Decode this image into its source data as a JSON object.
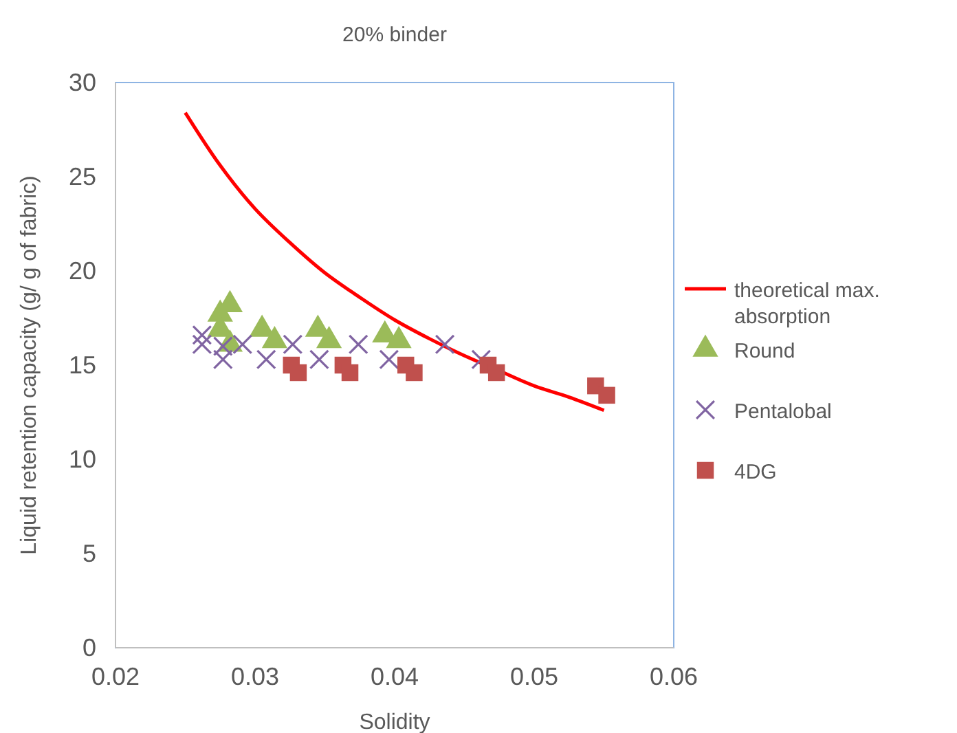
{
  "chart_data": {
    "type": "scatter",
    "title": "20% binder",
    "xlabel": "Solidity",
    "ylabel": "Liquid retention capacity (g/ g of fabric)",
    "xlim": [
      0.02,
      0.06
    ],
    "xticks": [
      {
        "value": 0.02,
        "label": "0.02"
      },
      {
        "value": 0.03,
        "label": "0.03"
      },
      {
        "value": 0.04,
        "label": "0.04"
      },
      {
        "value": 0.05,
        "label": "0.05"
      },
      {
        "value": 0.06,
        "label": "0.06"
      }
    ],
    "ylim": [
      0,
      30
    ],
    "yticks": [
      0,
      5,
      10,
      15,
      20,
      25,
      30
    ],
    "grid": false,
    "legend": "right",
    "series": [
      {
        "name": "theoretical max. absorption",
        "type": "line",
        "color": "#ff0000",
        "marker": "none",
        "line_style": "solid",
        "x": [
          0.025,
          0.0275,
          0.03,
          0.0325,
          0.035,
          0.0375,
          0.04,
          0.0425,
          0.045,
          0.0475,
          0.05,
          0.0525,
          0.055
        ],
        "values": [
          28.4,
          25.6,
          23.3,
          21.5,
          19.9,
          18.6,
          17.4,
          16.4,
          15.5,
          14.7,
          13.9,
          13.3,
          12.6
        ]
      },
      {
        "name": "Round",
        "color": "#9bbb59",
        "marker": "triangle",
        "x": [
          0.0275,
          0.0282,
          0.0275,
          0.0282,
          0.0305,
          0.0314,
          0.0345,
          0.0353,
          0.0393,
          0.0403
        ],
        "values": [
          17.7,
          18.2,
          16.9,
          16.1,
          16.9,
          16.3,
          16.9,
          16.3,
          16.6,
          16.3
        ]
      },
      {
        "name": "Pentalobal",
        "color": "#8064a2",
        "marker": "cross",
        "x": [
          0.0262,
          0.0262,
          0.0277,
          0.0277,
          0.0291,
          0.0308,
          0.0327,
          0.0346,
          0.0374,
          0.0396,
          0.0436,
          0.0462
        ],
        "values": [
          16.6,
          16.1,
          16.0,
          15.3,
          16.1,
          15.3,
          16.1,
          15.3,
          16.1,
          15.3,
          16.1,
          15.3
        ]
      },
      {
        "name": "4DG",
        "color": "#c0504d",
        "marker": "square",
        "x": [
          0.0326,
          0.0331,
          0.0363,
          0.0368,
          0.0408,
          0.0414,
          0.0467,
          0.0473,
          0.0544,
          0.0552
        ],
        "values": [
          15.0,
          14.6,
          15.0,
          14.6,
          15.0,
          14.6,
          15.0,
          14.6,
          13.9,
          13.4
        ]
      }
    ]
  }
}
